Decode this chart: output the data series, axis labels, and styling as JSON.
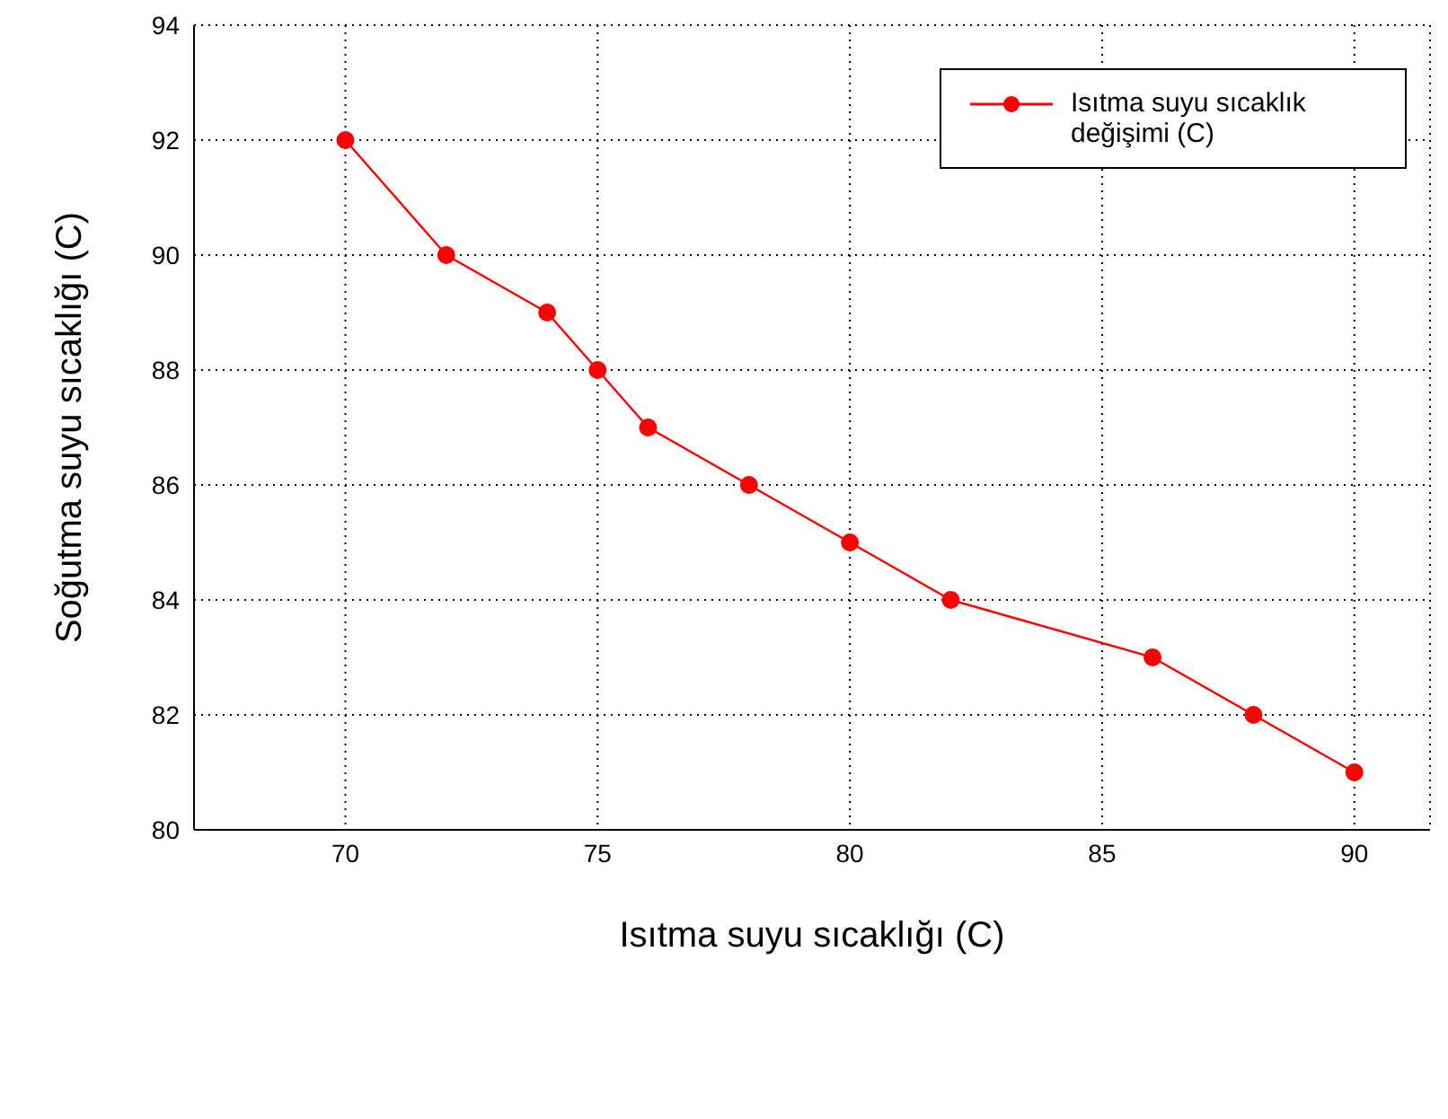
{
  "chart_data": {
    "type": "line",
    "xlabel": "Isıtma suyu sıcaklığı (C)",
    "ylabel": "Soğutma suyu sıcaklığı (C)",
    "x": [
      70,
      72,
      74,
      75,
      76,
      78,
      80,
      82,
      86,
      88,
      90
    ],
    "series": [
      {
        "name": "Isıtma suyu sıcaklık değişimi (C)",
        "color": "#ff0000",
        "values": [
          92,
          90,
          89,
          88,
          87,
          86,
          85,
          84,
          83,
          82,
          81
        ]
      }
    ],
    "xlim": [
      67,
      91.5
    ],
    "xticks": [
      70,
      75,
      80,
      85,
      90
    ],
    "ylim": [
      80,
      94
    ],
    "yticks": [
      80,
      82,
      84,
      86,
      88,
      90,
      92,
      94
    ],
    "grid": true,
    "legend": "top right",
    "marker": "circle",
    "line_style": "solid"
  }
}
